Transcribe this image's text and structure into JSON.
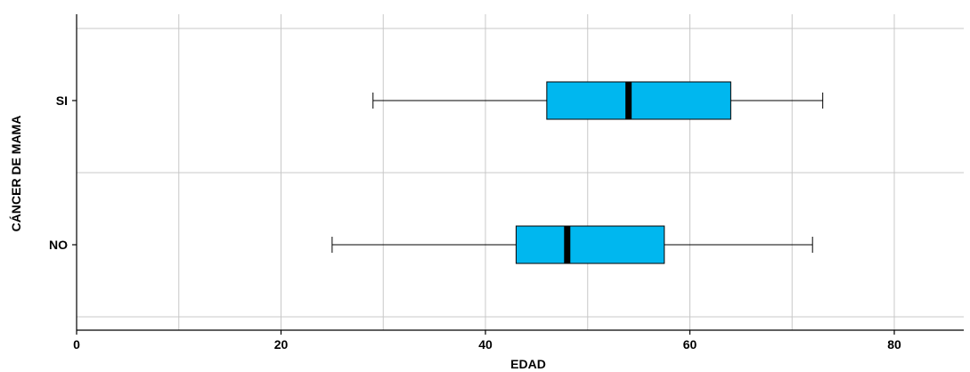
{
  "chart_data": {
    "type": "boxplot",
    "orientation": "horizontal",
    "xlabel": "EDAD",
    "ylabel": "CÁNCER DE MAMA",
    "xlim": [
      0,
      87
    ],
    "xticks": [
      0,
      20,
      40,
      60,
      80
    ],
    "x_minor_grid": [
      10,
      30,
      50,
      70
    ],
    "grid": true,
    "box_color": "#00b7ef",
    "categories": [
      "SI",
      "NO"
    ],
    "series": [
      {
        "category": "SI",
        "min": 29,
        "q1": 46,
        "median": 54,
        "q3": 64,
        "max": 73
      },
      {
        "category": "NO",
        "min": 25,
        "q1": 43,
        "median": 48,
        "q3": 57.5,
        "max": 72
      }
    ]
  }
}
